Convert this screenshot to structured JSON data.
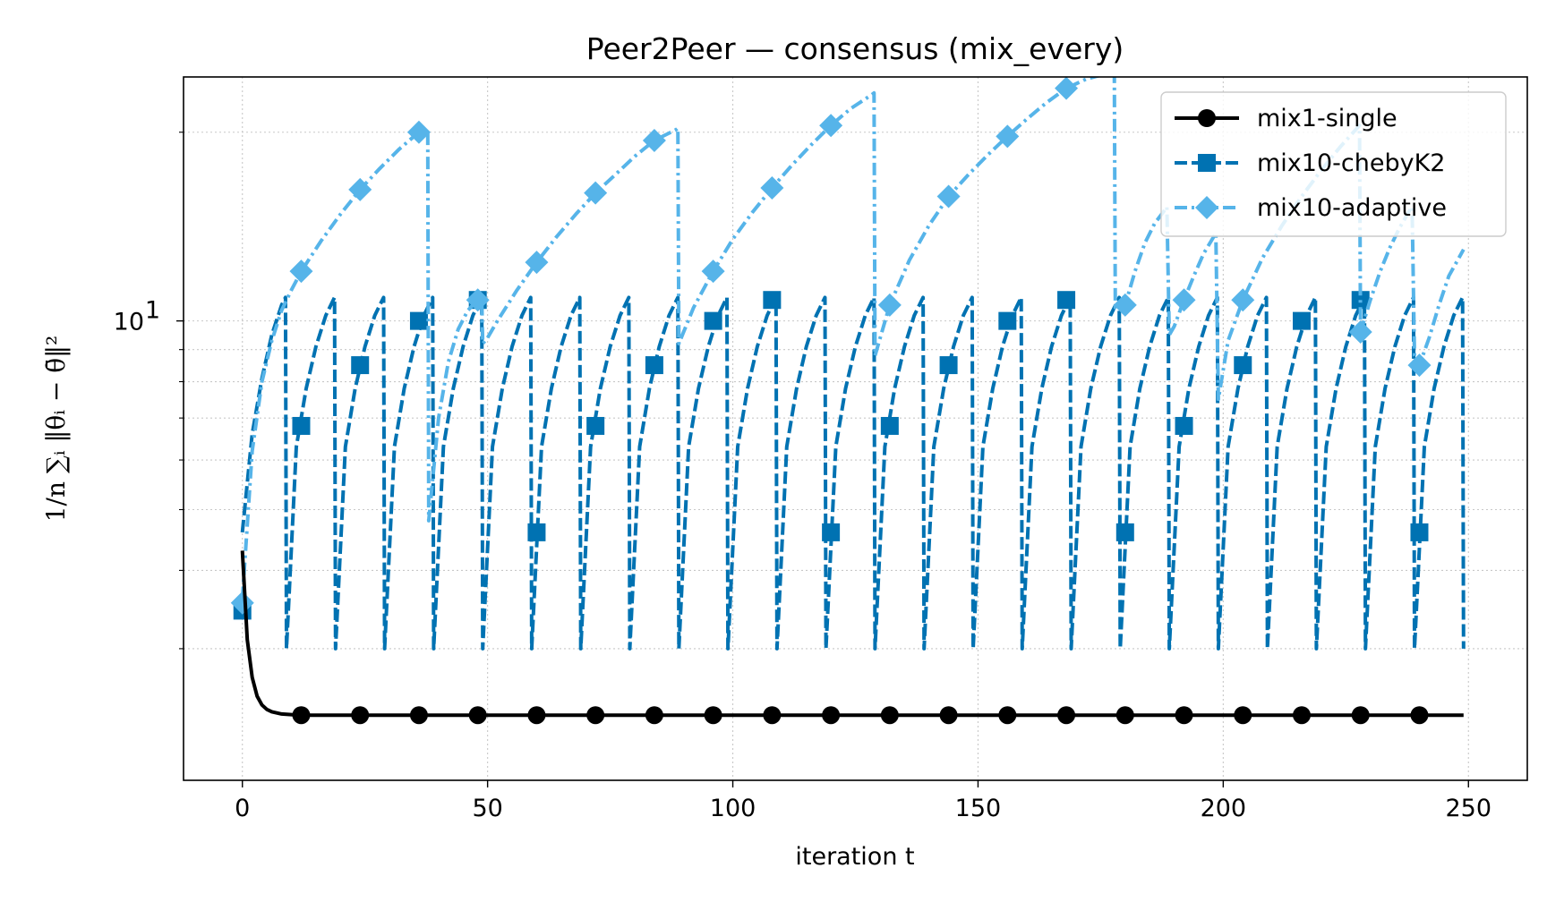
{
  "chart_data": {
    "type": "line",
    "title": "Peer2Peer — consensus (mix_every)",
    "xlabel": "iteration t",
    "ylabel": "1/n ∑ᵢ ‖θᵢ − θ̄‖²",
    "yscale": "log",
    "xlim": [
      -12,
      262
    ],
    "ylim": [
      1.85,
      24.5
    ],
    "xticks": [
      0,
      50,
      100,
      150,
      200,
      250
    ],
    "xtick_labels": [
      "0",
      "50",
      "100",
      "150",
      "200",
      "250"
    ],
    "ytick_major": [
      10
    ],
    "ytick_major_labels": [
      "10",
      "1"
    ],
    "ytick_minor": [
      3,
      4,
      5,
      6,
      7,
      8,
      9,
      20
    ],
    "grid": true,
    "legend_position": "top-right",
    "series": [
      {
        "name": "mix1-single",
        "color": "#000000",
        "linestyle": "solid",
        "marker": "circle",
        "x": [
          0,
          1,
          2,
          3,
          4,
          5,
          6,
          8,
          10,
          12,
          24,
          36,
          48,
          60,
          72,
          84,
          96,
          108,
          120,
          132,
          144,
          156,
          168,
          180,
          192,
          204,
          216,
          228,
          240,
          249
        ],
        "y": [
          4.3,
          3.1,
          2.7,
          2.52,
          2.44,
          2.4,
          2.38,
          2.36,
          2.355,
          2.35,
          2.35,
          2.35,
          2.35,
          2.35,
          2.35,
          2.35,
          2.35,
          2.35,
          2.35,
          2.35,
          2.35,
          2.35,
          2.35,
          2.35,
          2.35,
          2.35,
          2.35,
          2.35,
          2.35,
          2.35
        ],
        "marker_x": [
          12,
          24,
          36,
          48,
          60,
          72,
          84,
          96,
          108,
          120,
          132,
          144,
          156,
          168,
          180,
          192,
          204,
          216,
          228,
          240
        ]
      },
      {
        "name": "mix10-chebyK2",
        "color": "#0072b2",
        "linestyle": "dashed",
        "marker": "square",
        "x": [
          0,
          2,
          4,
          6,
          8,
          8.8,
          9,
          11,
          13,
          15,
          17,
          18.8,
          19,
          21,
          23,
          25,
          27,
          28.8,
          29,
          31,
          33,
          35,
          37,
          38.8,
          39,
          41,
          43,
          45,
          47,
          48.8,
          49,
          51,
          53,
          55,
          57,
          58.8,
          59,
          61,
          63,
          65,
          67,
          68.8,
          69,
          71,
          73,
          75,
          77,
          78.8,
          79,
          81,
          83,
          85,
          87,
          88.8,
          89,
          91,
          93,
          95,
          97,
          98.8,
          99,
          101,
          103,
          105,
          107,
          108.8,
          109,
          111,
          113,
          115,
          117,
          118.8,
          119,
          121,
          123,
          125,
          127,
          128.8,
          129,
          131,
          133,
          135,
          137,
          138.8,
          139,
          141,
          143,
          145,
          147,
          148.8,
          149,
          151,
          153,
          155,
          157,
          158.8,
          159,
          161,
          163,
          165,
          167,
          168.8,
          169,
          171,
          173,
          175,
          177,
          178.8,
          179,
          181,
          183,
          185,
          187,
          188.8,
          189,
          191,
          193,
          195,
          197,
          198.8,
          199,
          201,
          203,
          205,
          207,
          208.8,
          209,
          211,
          213,
          215,
          217,
          218.8,
          219,
          221,
          223,
          225,
          227,
          228.8,
          229,
          231,
          233,
          235,
          237,
          238.8,
          239,
          241,
          243,
          245,
          247,
          248.8,
          249
        ],
        "y": [
          4.6,
          6.6,
          8.1,
          9.5,
          10.6,
          10.9,
          3.0,
          6.3,
          7.8,
          9.1,
          10.2,
          10.9,
          3.0,
          6.3,
          7.8,
          9.1,
          10.2,
          10.9,
          3.0,
          6.3,
          7.8,
          9.1,
          10.2,
          10.9,
          3.0,
          6.3,
          7.8,
          9.1,
          10.2,
          10.9,
          3.0,
          6.3,
          7.8,
          9.1,
          10.2,
          10.9,
          3.0,
          6.3,
          7.8,
          9.1,
          10.2,
          10.9,
          3.0,
          6.3,
          7.8,
          9.1,
          10.2,
          10.9,
          3.0,
          6.3,
          7.8,
          9.1,
          10.2,
          10.9,
          3.0,
          6.3,
          7.8,
          9.1,
          10.2,
          10.9,
          3.0,
          6.3,
          7.8,
          9.1,
          10.2,
          10.9,
          3.0,
          6.3,
          7.8,
          9.1,
          10.2,
          10.9,
          3.0,
          6.3,
          7.8,
          9.1,
          10.2,
          10.9,
          3.0,
          6.3,
          7.8,
          9.1,
          10.2,
          10.9,
          3.0,
          6.3,
          7.8,
          9.1,
          10.2,
          10.9,
          3.0,
          6.3,
          7.8,
          9.1,
          10.2,
          10.9,
          3.0,
          6.3,
          7.8,
          9.1,
          10.2,
          10.9,
          3.0,
          6.3,
          7.8,
          9.1,
          10.2,
          10.9,
          3.0,
          6.3,
          7.8,
          9.1,
          10.2,
          10.9,
          3.0,
          6.3,
          7.8,
          9.1,
          10.2,
          10.9,
          3.0,
          6.3,
          7.8,
          9.1,
          10.2,
          10.9,
          3.0,
          6.3,
          7.8,
          9.1,
          10.2,
          10.9,
          3.0,
          6.3,
          7.8,
          9.1,
          10.2,
          10.9,
          3.0,
          6.3,
          7.8,
          9.1,
          10.2,
          10.9,
          3.0,
          6.3,
          7.8,
          9.1,
          10.2,
          10.9,
          3.0
        ],
        "markers": [
          [
            0,
            3.45
          ],
          [
            12,
            6.8
          ],
          [
            24,
            8.5
          ],
          [
            36,
            10.0
          ],
          [
            48,
            10.8
          ],
          [
            60,
            4.6
          ],
          [
            72,
            6.8
          ],
          [
            84,
            8.5
          ],
          [
            96,
            10.0
          ],
          [
            108,
            10.8
          ],
          [
            120,
            4.6
          ],
          [
            132,
            6.8
          ],
          [
            144,
            8.5
          ],
          [
            156,
            10.0
          ],
          [
            168,
            10.8
          ],
          [
            180,
            4.6
          ],
          [
            192,
            6.8
          ],
          [
            204,
            8.5
          ],
          [
            216,
            10.0
          ],
          [
            228,
            10.8
          ],
          [
            240,
            4.6
          ]
        ]
      },
      {
        "name": "mix10-adaptive",
        "color": "#56b4e9",
        "linestyle": "dashdot",
        "marker": "diamond",
        "x": [
          0,
          2,
          4,
          6,
          8,
          10,
          12,
          16,
          20,
          24,
          28,
          32,
          36,
          37.8,
          38,
          40,
          42,
          44,
          46,
          48,
          48.8,
          49,
          50,
          52,
          56,
          60,
          64,
          68,
          72,
          76,
          80,
          84,
          88.5,
          88.8,
          89,
          92,
          96,
          100,
          104,
          108,
          112,
          116,
          120,
          124,
          128.5,
          128.8,
          129,
          132,
          136,
          140,
          144,
          148,
          152,
          156,
          160,
          164,
          168,
          172,
          177.8,
          178,
          180,
          182,
          184,
          186,
          188,
          188.5,
          189,
          190,
          192,
          194,
          196,
          198,
          198.5,
          199,
          201,
          204,
          208,
          212,
          216,
          220,
          224,
          227.8,
          228,
          230,
          232,
          234,
          236,
          238,
          238.5,
          239,
          240,
          242,
          244,
          246,
          249
        ],
        "y": [
          3.6,
          6.2,
          8.0,
          9.3,
          10.4,
          11.2,
          12.0,
          13.4,
          14.8,
          16.2,
          17.5,
          18.8,
          20.0,
          20.2,
          4.8,
          7.0,
          8.6,
          9.7,
          10.4,
          10.8,
          10.9,
          9.2,
          9.4,
          10.0,
          11.2,
          12.4,
          13.6,
          14.8,
          16.0,
          17.1,
          18.3,
          19.4,
          20.2,
          20.3,
          9.2,
          10.5,
          12.0,
          13.5,
          14.9,
          16.3,
          17.7,
          19.1,
          20.5,
          21.8,
          23.0,
          23.1,
          8.8,
          10.6,
          12.5,
          14.2,
          15.8,
          17.1,
          18.4,
          19.7,
          21.0,
          22.3,
          23.5,
          24.3,
          25.0,
          10.5,
          10.6,
          12.0,
          13.3,
          14.3,
          15.0,
          15.2,
          9.5,
          9.8,
          10.8,
          11.8,
          12.8,
          13.6,
          13.8,
          7.5,
          9.3,
          10.8,
          12.6,
          14.2,
          15.8,
          17.4,
          19.0,
          20.5,
          9.6,
          10.8,
          12.0,
          13.1,
          14.1,
          15.0,
          15.2,
          8.8,
          8.5,
          9.4,
          10.6,
          11.8,
          13.0
        ],
        "markers": [
          [
            0,
            3.55
          ],
          [
            12,
            12.0
          ],
          [
            24,
            16.2
          ],
          [
            36,
            20.0
          ],
          [
            48,
            10.8
          ],
          [
            60,
            12.4
          ],
          [
            72,
            16.0
          ],
          [
            84,
            19.4
          ],
          [
            96,
            12.0
          ],
          [
            108,
            16.3
          ],
          [
            120,
            20.5
          ],
          [
            132,
            10.6
          ],
          [
            144,
            15.8
          ],
          [
            156,
            19.7
          ],
          [
            168,
            23.5
          ],
          [
            180,
            10.6
          ],
          [
            192,
            10.8
          ],
          [
            204,
            10.8
          ],
          [
            228,
            9.6
          ],
          [
            240,
            8.5
          ]
        ]
      }
    ]
  },
  "legend": {
    "items": [
      {
        "label": "mix1-single",
        "color": "#000000",
        "dash": "solid",
        "marker": "circle"
      },
      {
        "label": "mix10-chebyK2",
        "color": "#0072b2",
        "dash": "dashed",
        "marker": "square"
      },
      {
        "label": "mix10-adaptive",
        "color": "#56b4e9",
        "dash": "dashdot",
        "marker": "diamond"
      }
    ]
  }
}
